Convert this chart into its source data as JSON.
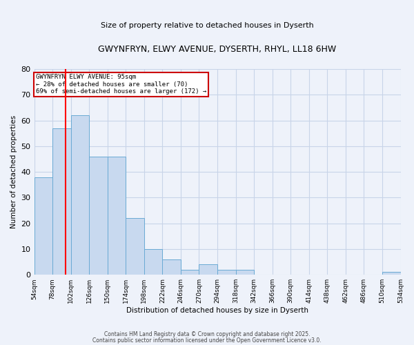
{
  "title1": "GWYNFRYN, ELWY AVENUE, DYSERTH, RHYL, LL18 6HW",
  "title2": "Size of property relative to detached houses in Dyserth",
  "xlabel": "Distribution of detached houses by size in Dyserth",
  "ylabel": "Number of detached properties",
  "bin_edges": [
    54,
    78,
    102,
    126,
    150,
    174,
    198,
    222,
    246,
    270,
    294,
    318,
    342,
    366,
    390,
    414,
    438,
    462,
    486,
    510,
    534
  ],
  "bar_heights": [
    38,
    57,
    62,
    46,
    46,
    22,
    10,
    6,
    2,
    4,
    2,
    2,
    0,
    0,
    0,
    0,
    0,
    0,
    0,
    1
  ],
  "bar_color": "#c8d9ef",
  "bar_edge_color": "#6aaad4",
  "grid_color": "#c8d4e8",
  "background_color": "#eef2fa",
  "red_line_x": 95,
  "annotation_title": "GWYNFRYN ELWY AVENUE: 95sqm",
  "annotation_line2": "← 28% of detached houses are smaller (70)",
  "annotation_line3": "69% of semi-detached houses are larger (172) →",
  "annotation_box_color": "#ffffff",
  "annotation_box_edge": "#cc0000",
  "ylim": [
    0,
    80
  ],
  "yticks": [
    0,
    10,
    20,
    30,
    40,
    50,
    60,
    70,
    80
  ],
  "footer1": "Contains HM Land Registry data © Crown copyright and database right 2025.",
  "footer2": "Contains public sector information licensed under the Open Government Licence v3.0."
}
